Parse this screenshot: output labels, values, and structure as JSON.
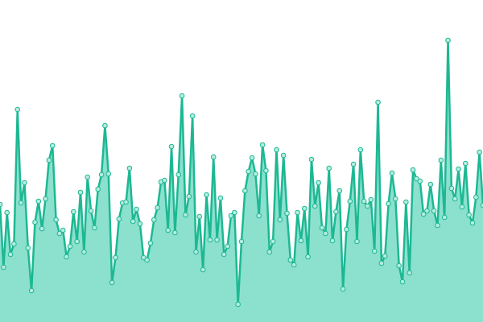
{
  "chart_data": {
    "type": "area",
    "color": "#1db893",
    "fill": "#8ce0ce",
    "marker_fill": "#b5ecdf",
    "x": [
      0,
      1,
      2,
      3,
      4,
      5,
      6,
      7,
      8,
      9,
      10,
      11,
      12,
      13,
      14,
      15,
      16,
      17,
      18,
      19,
      20,
      21,
      22,
      23,
      24,
      25,
      26,
      27,
      28,
      29,
      30,
      31,
      32,
      33,
      34,
      35,
      36,
      37,
      38,
      39,
      40,
      41,
      42,
      43,
      44,
      45,
      46,
      47,
      48,
      49,
      50,
      51,
      52,
      53,
      54,
      55,
      56,
      57,
      58,
      59,
      60,
      61,
      62,
      63,
      64,
      65,
      66,
      67,
      68,
      69,
      70,
      71,
      72,
      73,
      74,
      75,
      76,
      77,
      78,
      79,
      80,
      81,
      82,
      83,
      84,
      85,
      86,
      87,
      88,
      89,
      90,
      91,
      92,
      93,
      94,
      95,
      96,
      97,
      98,
      99,
      100,
      101,
      102,
      103,
      104,
      105,
      106,
      107,
      108,
      109,
      110,
      111,
      112,
      113,
      114,
      115,
      116,
      117,
      118,
      119,
      120,
      121,
      122,
      123,
      124,
      125,
      126,
      127,
      128,
      129,
      130,
      131,
      132,
      133,
      134,
      135,
      136,
      137,
      138
    ],
    "values": [
      146,
      68,
      136,
      84,
      97,
      264,
      148,
      173,
      92,
      39,
      124,
      150,
      116,
      153,
      201,
      219,
      127,
      110,
      114,
      81,
      94,
      137,
      100,
      161,
      87,
      180,
      138,
      117,
      165,
      183,
      244,
      184,
      49,
      80,
      128,
      148,
      149,
      191,
      125,
      140,
      122,
      80,
      77,
      98,
      127,
      142,
      174,
      176,
      114,
      218,
      111,
      183,
      281,
      133,
      156,
      256,
      87,
      131,
      65,
      158,
      102,
      205,
      102,
      154,
      84,
      94,
      132,
      136,
      22,
      100,
      163,
      187,
      204,
      184,
      132,
      220,
      188,
      87,
      100,
      214,
      127,
      207,
      135,
      77,
      71,
      136,
      101,
      141,
      81,
      202,
      144,
      173,
      117,
      110,
      191,
      101,
      137,
      163,
      41,
      115,
      150,
      196,
      100,
      214,
      150,
      144,
      152,
      88,
      273,
      73,
      82,
      147,
      185,
      153,
      70,
      50,
      149,
      61,
      189,
      178,
      175,
      134,
      138,
      171,
      138,
      120,
      201,
      130,
      350,
      166,
      153,
      190,
      143,
      197,
      133,
      123,
      155,
      211,
      145
    ],
    "xlim": [
      0,
      138
    ],
    "ylim": [
      0,
      400
    ]
  }
}
